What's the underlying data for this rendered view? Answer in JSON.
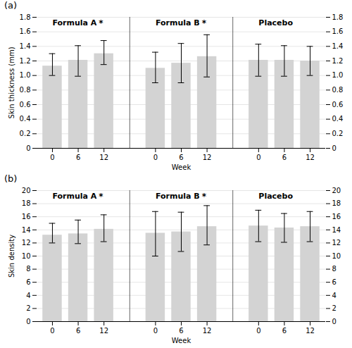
{
  "chart_data": [
    {
      "type": "bar",
      "title": "(a)",
      "categories": [
        "0",
        "6",
        "12",
        "0",
        "6",
        "12",
        "0",
        "6",
        "12"
      ],
      "category_groups": [
        "Formula A",
        "Formula A",
        "Formula A",
        "Formula B",
        "Formula B",
        "Formula B",
        "Placebo",
        "Placebo",
        "Placebo"
      ],
      "values": [
        1.13,
        1.21,
        1.3,
        1.1,
        1.17,
        1.26,
        1.21,
        1.21,
        1.2
      ],
      "error_up": [
        0.17,
        0.2,
        0.18,
        0.22,
        0.27,
        0.3,
        0.22,
        0.2,
        0.2
      ],
      "error_lo": [
        0.13,
        0.22,
        0.15,
        0.2,
        0.27,
        0.28,
        0.22,
        0.22,
        0.2
      ],
      "annotations": [
        {
          "text": "*",
          "group": "Formula A"
        },
        {
          "text": "*",
          "group": "Formula B"
        }
      ],
      "color": "#d3d3d3",
      "x_label": "Week",
      "y_label": "Skin thickness (mm)",
      "ylim": [
        0,
        1.8
      ],
      "yticks": [
        0,
        0.2,
        0.4,
        0.6,
        0.8,
        {
          "value": 1.0,
          "label": "1.0"
        },
        1.2,
        1.4,
        1.6,
        1.8
      ],
      "grid": true
    },
    {
      "type": "bar",
      "title": "(b)",
      "categories": [
        "0",
        "6",
        "12",
        "0",
        "6",
        "12",
        "0",
        "6",
        "12"
      ],
      "category_groups": [
        "Formula A",
        "Formula A",
        "Formula A",
        "Formula B",
        "Formula B",
        "Formula B",
        "Placebo",
        "Placebo",
        "Placebo"
      ],
      "values": [
        13.2,
        13.4,
        14.1,
        13.5,
        13.7,
        14.5,
        14.6,
        14.3,
        14.5
      ],
      "error_up": [
        1.8,
        2.1,
        2.2,
        3.3,
        3.0,
        3.2,
        2.4,
        2.2,
        2.3
      ],
      "error_lo": [
        1.2,
        1.5,
        1.9,
        3.5,
        3.0,
        2.8,
        2.4,
        2.2,
        2.3
      ],
      "annotations": [
        {
          "text": "*",
          "group": "Formula A"
        },
        {
          "text": "*",
          "group": "Formula B"
        }
      ],
      "color": "#d3d3d3",
      "x_label": "Week",
      "y_label": "Skin density",
      "ylim": [
        0,
        20
      ],
      "yticks": [
        0,
        2,
        4,
        6,
        8,
        10,
        12,
        14,
        16,
        18,
        20
      ],
      "grid": true
    }
  ]
}
